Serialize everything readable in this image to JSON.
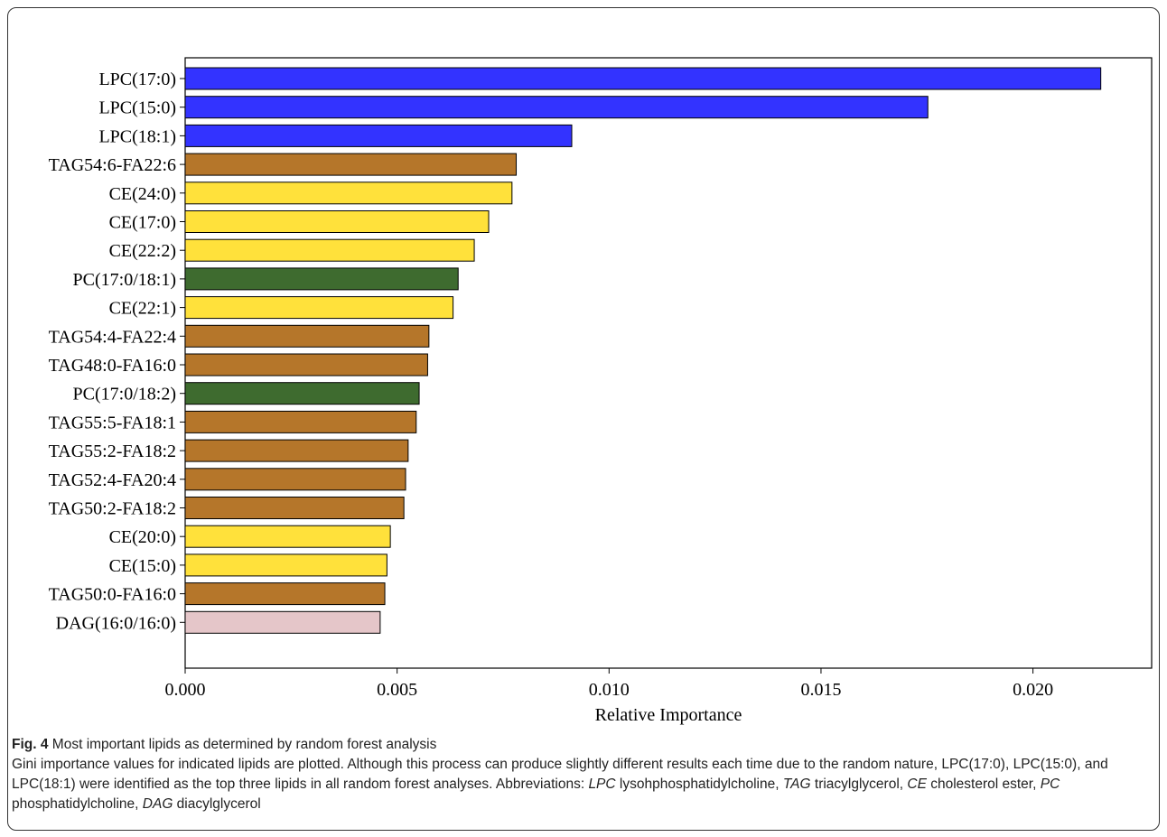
{
  "figure": {
    "label": "Fig. 4",
    "title": "Most important lipids as determined by random forest analysis",
    "text_part1": "Gini importance values for indicated lipids are plotted. Although this process can produce slightly different results each time due to the random nature, LPC(17:0), LPC(15:0), and LPC(18:1) were identified as the top three lipids in all random forest analyses. Abbreviations: ",
    "abbreviations": [
      {
        "abbr": "LPC",
        "def": "lysohphosphatidylcholine"
      },
      {
        "abbr": "TAG",
        "def": "triacylglycerol"
      },
      {
        "abbr": "CE",
        "def": "cholesterol ester"
      },
      {
        "abbr": "PC",
        "def": "phosphatidylcholine"
      },
      {
        "abbr": "DAG",
        "def": "diacylglycerol"
      }
    ]
  },
  "chart_data": {
    "type": "bar",
    "orientation": "horizontal",
    "xlabel": "Relative Importance",
    "ylabel": "",
    "xlim": [
      0.0,
      0.0228
    ],
    "xticks": [
      "0.000",
      "0.005",
      "0.010",
      "0.015",
      "0.020"
    ],
    "xtick_values": [
      0.0,
      0.005,
      0.01,
      0.015,
      0.02
    ],
    "grid": false,
    "categories": [
      "LPC(17:0)",
      "LPC(15:0)",
      "LPC(18:1)",
      "TAG54:6-FA22:6",
      "CE(24:0)",
      "CE(17:0)",
      "CE(22:2)",
      "PC(17:0/18:1)",
      "CE(22:1)",
      "TAG54:4-FA22:4",
      "TAG48:0-FA16:0",
      "PC(17:0/18:2)",
      "TAG55:5-FA18:1",
      "TAG55:2-FA18:2",
      "TAG52:4-FA20:4",
      "TAG50:2-FA18:2",
      "CE(20:0)",
      "CE(15:0)",
      "TAG50:0-FA16:0",
      "DAG(16:0/16:0)"
    ],
    "values": [
      0.0216,
      0.01752,
      0.00912,
      0.00781,
      0.00771,
      0.00716,
      0.00682,
      0.00644,
      0.00632,
      0.00575,
      0.00572,
      0.00552,
      0.00545,
      0.00526,
      0.0052,
      0.00516,
      0.00484,
      0.00476,
      0.00471,
      0.0046
    ],
    "bar_classes": [
      "LPC",
      "LPC",
      "LPC",
      "TAG",
      "CE",
      "CE",
      "CE",
      "PC",
      "CE",
      "TAG",
      "TAG",
      "PC",
      "TAG",
      "TAG",
      "TAG",
      "TAG",
      "CE",
      "CE",
      "TAG",
      "DAG"
    ],
    "class_colors": {
      "LPC": "#3333ff",
      "TAG": "#b5762a",
      "CE": "#ffe13b",
      "PC": "#3e6b2f",
      "DAG": "#e5c6c9"
    }
  }
}
